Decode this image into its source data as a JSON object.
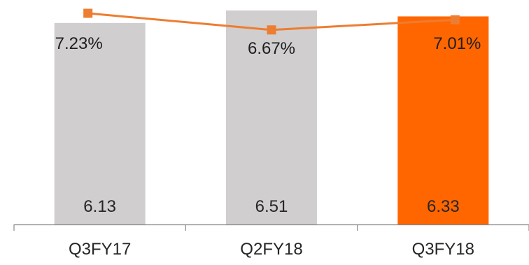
{
  "chart_data": {
    "type": "bar",
    "categories": [
      "Q3FY17",
      "Q2FY18",
      "Q3FY18"
    ],
    "series": [
      {
        "type": "bar",
        "values": [
          6.13,
          6.51,
          6.33
        ],
        "value_labels": [
          "6.13",
          "6.51",
          "6.33"
        ],
        "colors": [
          "#d0cece",
          "#d0cece",
          "#ff6600"
        ]
      },
      {
        "type": "line",
        "values": [
          7.23,
          6.67,
          7.01
        ],
        "value_labels": [
          "7.23%",
          "6.67%",
          "7.01%"
        ],
        "color": "#ed7d31",
        "marker": "square"
      }
    ],
    "title": "",
    "xlabel": "",
    "ylabel": "",
    "grid": false,
    "legend": "none"
  }
}
